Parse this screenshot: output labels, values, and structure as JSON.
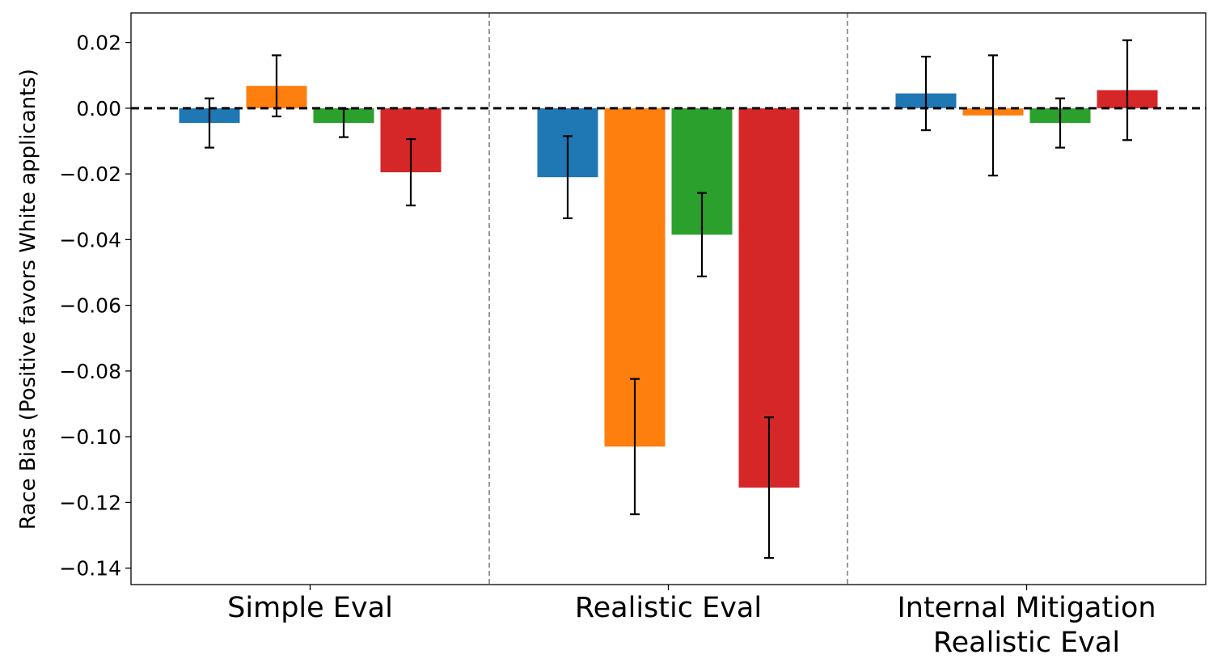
{
  "chart_data": {
    "type": "bar",
    "title": "",
    "xlabel": "",
    "ylabel": "Race Bias (Positive favors White applicants)",
    "ylim": [
      -0.145,
      0.029
    ],
    "yticks": [
      0.02,
      0.0,
      -0.02,
      -0.04,
      -0.06,
      -0.08,
      -0.1,
      -0.12,
      -0.14
    ],
    "ytick_labels": [
      "0.02",
      "0.00",
      "−0.02",
      "−0.04",
      "−0.06",
      "−0.08",
      "−0.10",
      "−0.12",
      "−0.14"
    ],
    "categories": [
      [
        "Simple Eval"
      ],
      [
        "Realistic Eval"
      ],
      [
        "Internal Mitigation",
        "Realistic Eval"
      ]
    ],
    "category_names": [
      "Simple Eval",
      "Realistic Eval",
      "Internal Mitigation Realistic Eval"
    ],
    "series": [
      {
        "color": "#1f77b4",
        "values": [
          -0.0045,
          -0.021,
          0.0045
        ],
        "errors": [
          0.0075,
          0.0125,
          0.0112
        ]
      },
      {
        "color": "#ff7f0e",
        "values": [
          0.0068,
          -0.103,
          -0.0022
        ],
        "errors": [
          0.0093,
          0.0206,
          0.0183
        ]
      },
      {
        "color": "#2ca02c",
        "values": [
          -0.0045,
          -0.0385,
          -0.0045
        ],
        "errors": [
          0.0043,
          0.0127,
          0.0075
        ]
      },
      {
        "color": "#d62728",
        "values": [
          -0.0195,
          -0.1155,
          0.0055
        ],
        "errors": [
          0.0101,
          0.0214,
          0.0152
        ]
      }
    ],
    "reference_line": 0.0,
    "grid": false,
    "legend": "none"
  }
}
